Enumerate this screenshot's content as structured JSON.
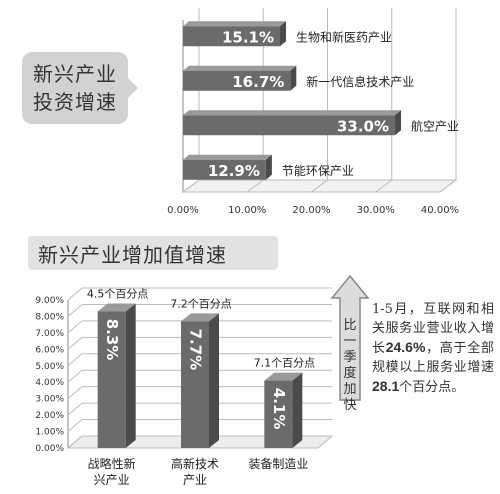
{
  "chart_data": [
    {
      "type": "bar",
      "orientation": "horizontal",
      "title": "新兴产业投资增速",
      "title_lines": [
        "新兴产业",
        "投资增速"
      ],
      "categories": [
        "生物和新医药产业",
        "新一代信息技术产业",
        "航空产业",
        "节能环保产业"
      ],
      "values": [
        15.1,
        16.7,
        33.0,
        12.9
      ],
      "value_labels": [
        "15.1%",
        "16.7%",
        "33.0%",
        "12.9%"
      ],
      "xlim": [
        0,
        40
      ],
      "x_ticks": [
        "0.00%",
        "10.00%",
        "20.00%",
        "30.00%",
        "40.00%"
      ],
      "grid": true
    },
    {
      "type": "bar",
      "title": "新兴产业增加值增速",
      "categories": [
        "战略性新兴产业",
        "高新技术产业",
        "装备制造业"
      ],
      "category_lines": [
        [
          "战略性新",
          "兴产业"
        ],
        [
          "高新技术",
          "产业"
        ],
        [
          "装备制造业"
        ]
      ],
      "values": [
        8.3,
        7.7,
        4.1
      ],
      "value_labels": [
        "8.3%",
        "7.7%",
        "4.1%"
      ],
      "annotations": [
        "4.5个百分点",
        "7.2个百分点",
        "7.1个百分点"
      ],
      "ylim": [
        0,
        9
      ],
      "y_ticks": [
        "0.00%",
        "1.00%",
        "2.00%",
        "3.00%",
        "4.00%",
        "5.00%",
        "6.00%",
        "7.00%",
        "8.00%",
        "9.00%"
      ],
      "grid": true
    }
  ],
  "arrow_label": "比一季度加快",
  "arrow_chars": [
    "比",
    "一",
    "季",
    "度",
    "加",
    "快"
  ],
  "note": {
    "part1": "1-5月，互联网和相关服务业营业收入增长",
    "value1": "24.6%",
    "part2": "，高于全部规模以上服务业增速",
    "value2": "28.1",
    "part3": "个百分点。"
  },
  "colors": {
    "bar": "#6b6b6b",
    "bar_side": "#4a4a4a",
    "bar_top": "#9a9a9a",
    "grid": "#bbbbbb",
    "callout": "#d2d2d2"
  }
}
